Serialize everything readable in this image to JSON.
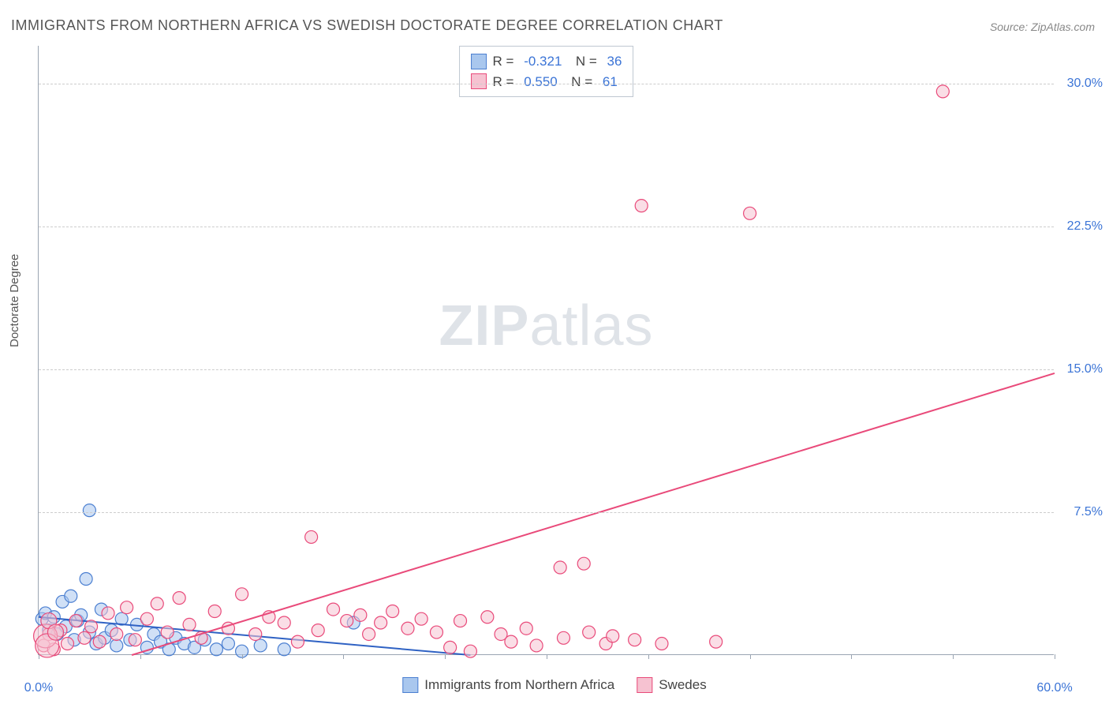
{
  "title": "IMMIGRANTS FROM NORTHERN AFRICA VS SWEDISH DOCTORATE DEGREE CORRELATION CHART",
  "source": "Source: ZipAtlas.com",
  "ylabel": "Doctorate Degree",
  "watermark_a": "ZIP",
  "watermark_b": "atlas",
  "chart": {
    "type": "scatter",
    "x_domain": [
      0,
      60
    ],
    "y_domain": [
      0,
      32
    ],
    "x_ticks_minor": [
      0,
      6,
      12,
      18,
      24,
      30,
      36,
      42,
      48,
      54,
      60
    ],
    "x_tick_labels": [
      {
        "x": 0,
        "label": "0.0%"
      },
      {
        "x": 60,
        "label": "60.0%"
      }
    ],
    "y_gridlines": [
      7.5,
      15.0,
      22.5,
      30.0
    ],
    "y_tick_labels": [
      {
        "y": 7.5,
        "label": "7.5%"
      },
      {
        "y": 15.0,
        "label": "15.0%"
      },
      {
        "y": 22.5,
        "label": "22.5%"
      },
      {
        "y": 30.0,
        "label": "30.0%"
      }
    ],
    "background_color": "#ffffff",
    "grid_color": "#cccccc",
    "axis_color": "#9aa4b2",
    "tick_label_color": "#3b74d6",
    "series": [
      {
        "name": "Immigrants from Northern Africa",
        "fill": "#a9c7ee",
        "stroke": "#4b7fd1",
        "fill_opacity": 0.55,
        "marker_r": 8,
        "R": "-0.321",
        "N": "36",
        "trend": {
          "x1": 0,
          "y1": 2.0,
          "x2": 25.5,
          "y2": 0.0,
          "color": "#2f62c4",
          "width": 2
        },
        "points": [
          {
            "x": 0.2,
            "y": 1.9
          },
          {
            "x": 0.4,
            "y": 2.2
          },
          {
            "x": 0.6,
            "y": 1.3
          },
          {
            "x": 0.9,
            "y": 2.0
          },
          {
            "x": 1.1,
            "y": 1.1
          },
          {
            "x": 1.4,
            "y": 2.8
          },
          {
            "x": 1.6,
            "y": 1.5
          },
          {
            "x": 1.9,
            "y": 3.1
          },
          {
            "x": 2.1,
            "y": 0.8
          },
          {
            "x": 2.3,
            "y": 1.8
          },
          {
            "x": 2.5,
            "y": 2.1
          },
          {
            "x": 2.8,
            "y": 4.0
          },
          {
            "x": 3.0,
            "y": 7.6
          },
          {
            "x": 3.0,
            "y": 1.2
          },
          {
            "x": 3.4,
            "y": 0.6
          },
          {
            "x": 3.7,
            "y": 2.4
          },
          {
            "x": 3.9,
            "y": 0.9
          },
          {
            "x": 4.3,
            "y": 1.3
          },
          {
            "x": 4.6,
            "y": 0.5
          },
          {
            "x": 4.9,
            "y": 1.9
          },
          {
            "x": 5.4,
            "y": 0.8
          },
          {
            "x": 5.8,
            "y": 1.6
          },
          {
            "x": 6.4,
            "y": 0.4
          },
          {
            "x": 6.8,
            "y": 1.1
          },
          {
            "x": 7.2,
            "y": 0.7
          },
          {
            "x": 7.7,
            "y": 0.3
          },
          {
            "x": 8.1,
            "y": 0.9
          },
          {
            "x": 8.6,
            "y": 0.6
          },
          {
            "x": 9.2,
            "y": 0.4
          },
          {
            "x": 9.8,
            "y": 0.8
          },
          {
            "x": 10.5,
            "y": 0.3
          },
          {
            "x": 11.2,
            "y": 0.6
          },
          {
            "x": 12.0,
            "y": 0.2
          },
          {
            "x": 13.1,
            "y": 0.5
          },
          {
            "x": 14.5,
            "y": 0.3
          },
          {
            "x": 18.6,
            "y": 1.7
          }
        ]
      },
      {
        "name": "Swedes",
        "fill": "#f6c2d1",
        "stroke": "#e94a7a",
        "fill_opacity": 0.55,
        "marker_r": 8,
        "R": "0.550",
        "N": "61",
        "trend": {
          "x1": 5.5,
          "y1": 0.0,
          "x2": 60,
          "y2": 14.8,
          "color": "#e94a7a",
          "width": 2
        },
        "points": [
          {
            "x": 0.3,
            "y": 0.5
          },
          {
            "x": 0.6,
            "y": 1.1
          },
          {
            "x": 0.9,
            "y": 0.3
          },
          {
            "x": 1.3,
            "y": 1.3
          },
          {
            "x": 1.7,
            "y": 0.6
          },
          {
            "x": 2.2,
            "y": 1.8
          },
          {
            "x": 2.7,
            "y": 0.9
          },
          {
            "x": 3.1,
            "y": 1.5
          },
          {
            "x": 3.6,
            "y": 0.7
          },
          {
            "x": 4.1,
            "y": 2.2
          },
          {
            "x": 4.6,
            "y": 1.1
          },
          {
            "x": 5.2,
            "y": 2.5
          },
          {
            "x": 5.7,
            "y": 0.8
          },
          {
            "x": 6.4,
            "y": 1.9
          },
          {
            "x": 7.0,
            "y": 2.7
          },
          {
            "x": 7.6,
            "y": 1.2
          },
          {
            "x": 8.3,
            "y": 3.0
          },
          {
            "x": 8.9,
            "y": 1.6
          },
          {
            "x": 9.6,
            "y": 0.9
          },
          {
            "x": 10.4,
            "y": 2.3
          },
          {
            "x": 11.2,
            "y": 1.4
          },
          {
            "x": 12.0,
            "y": 3.2
          },
          {
            "x": 12.8,
            "y": 1.1
          },
          {
            "x": 13.6,
            "y": 2.0
          },
          {
            "x": 14.5,
            "y": 1.7
          },
          {
            "x": 15.3,
            "y": 0.7
          },
          {
            "x": 16.1,
            "y": 6.2
          },
          {
            "x": 16.5,
            "y": 1.3
          },
          {
            "x": 17.4,
            "y": 2.4
          },
          {
            "x": 18.2,
            "y": 1.8
          },
          {
            "x": 19.0,
            "y": 2.1
          },
          {
            "x": 19.5,
            "y": 1.1
          },
          {
            "x": 20.2,
            "y": 1.7
          },
          {
            "x": 20.9,
            "y": 2.3
          },
          {
            "x": 21.8,
            "y": 1.4
          },
          {
            "x": 22.6,
            "y": 1.9
          },
          {
            "x": 23.5,
            "y": 1.2
          },
          {
            "x": 24.3,
            "y": 0.4
          },
          {
            "x": 24.9,
            "y": 1.8
          },
          {
            "x": 25.5,
            "y": 0.2
          },
          {
            "x": 26.5,
            "y": 2.0
          },
          {
            "x": 27.3,
            "y": 1.1
          },
          {
            "x": 27.9,
            "y": 0.7
          },
          {
            "x": 28.8,
            "y": 1.4
          },
          {
            "x": 29.4,
            "y": 0.5
          },
          {
            "x": 30.8,
            "y": 4.6
          },
          {
            "x": 31.0,
            "y": 0.9
          },
          {
            "x": 32.2,
            "y": 4.8
          },
          {
            "x": 32.5,
            "y": 1.2
          },
          {
            "x": 33.5,
            "y": 0.6
          },
          {
            "x": 33.9,
            "y": 1.0
          },
          {
            "x": 35.2,
            "y": 0.8
          },
          {
            "x": 35.6,
            "y": 23.6
          },
          {
            "x": 36.8,
            "y": 0.6
          },
          {
            "x": 40.0,
            "y": 0.7
          },
          {
            "x": 42.0,
            "y": 23.2
          },
          {
            "x": 53.4,
            "y": 29.6
          },
          {
            "x": 0.4,
            "y": 1.0,
            "r": 15
          },
          {
            "x": 0.5,
            "y": 0.5,
            "r": 15
          },
          {
            "x": 0.6,
            "y": 1.8,
            "r": 10
          },
          {
            "x": 1.0,
            "y": 1.2,
            "r": 10
          }
        ]
      }
    ],
    "bottom_legend": {
      "xlabel": "Immigrants from Northern Africa",
      "series2": "Swedes"
    }
  }
}
